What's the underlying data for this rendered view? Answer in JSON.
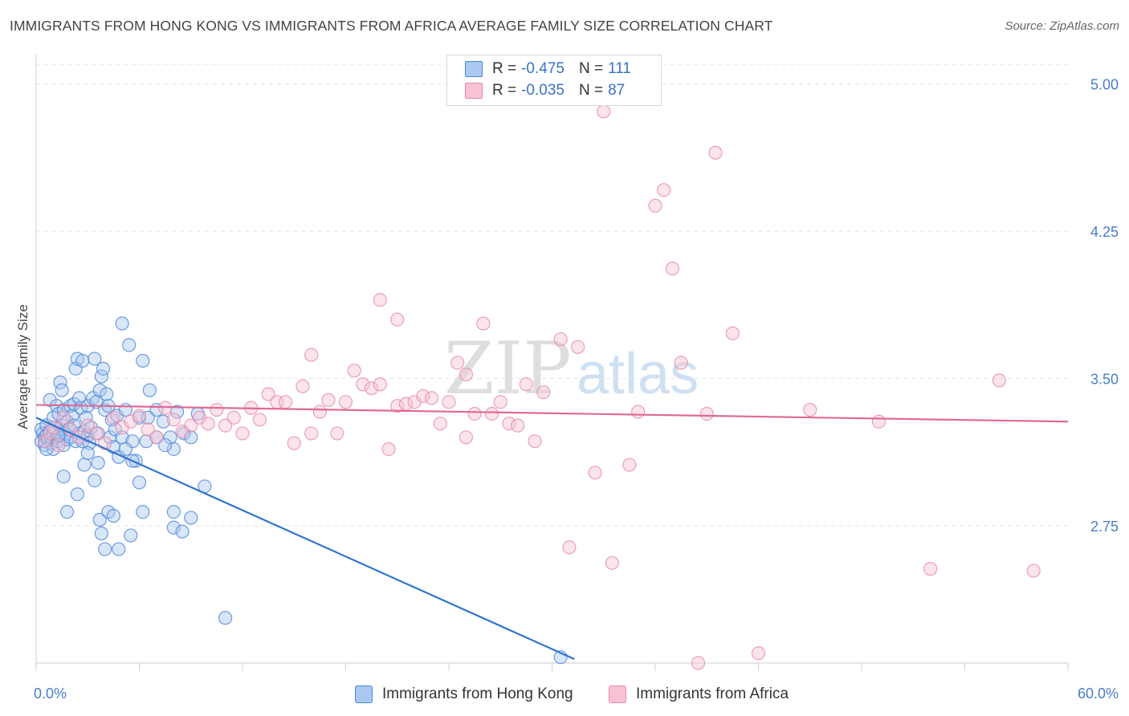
{
  "title": "IMMIGRANTS FROM HONG KONG VS IMMIGRANTS FROM AFRICA AVERAGE FAMILY SIZE CORRELATION CHART",
  "source": "Source: ZipAtlas.com",
  "watermark": {
    "zip": "ZIP",
    "atlas": "atlas"
  },
  "legend": {
    "hk": {
      "r_label": "R =",
      "r_value": "-0.475",
      "n_label": "N =",
      "n_value": "111"
    },
    "africa": {
      "r_label": "R =",
      "r_value": "-0.035",
      "n_label": "N =",
      "n_value": "87"
    }
  },
  "colors": {
    "hk_fill": "#aac8f0",
    "hk_stroke": "#4a86d8",
    "hk_line": "#2f74d0",
    "africa_fill": "#f7c3d3",
    "africa_stroke": "#e68aa8",
    "africa_line": "#e06a95",
    "grid": "#e3e3e3",
    "axis_text": "#4a7ec9"
  },
  "chart_data": {
    "type": "scatter",
    "title": "IMMIGRANTS FROM HONG KONG VS IMMIGRANTS FROM AFRICA AVERAGE FAMILY SIZE CORRELATION CHART",
    "xlabel": "",
    "ylabel": "Average Family Size",
    "xlim": [
      0,
      60
    ],
    "ylim": [
      2.05,
      5.15
    ],
    "x_tick_labels": [
      "0.0%",
      "60.0%"
    ],
    "y_ticks": [
      {
        "value": 5.0,
        "label": "5.00"
      },
      {
        "value": 4.25,
        "label": "4.25"
      },
      {
        "value": 3.5,
        "label": "3.50"
      },
      {
        "value": 2.75,
        "label": "2.75"
      }
    ],
    "series": [
      {
        "name": "Immigrants from Hong Kong",
        "trend": {
          "x": [
            0,
            31.3
          ],
          "y": [
            3.3,
            2.07
          ]
        },
        "points": [
          [
            0.3,
            3.24
          ],
          [
            0.3,
            3.18
          ],
          [
            0.4,
            3.22
          ],
          [
            0.5,
            3.2
          ],
          [
            0.5,
            3.16
          ],
          [
            0.6,
            3.26
          ],
          [
            0.6,
            3.21
          ],
          [
            0.7,
            3.19
          ],
          [
            0.8,
            3.23
          ],
          [
            0.8,
            3.39
          ],
          [
            0.9,
            3.17
          ],
          [
            1.0,
            3.22
          ],
          [
            1.0,
            3.3
          ],
          [
            1.0,
            3.14
          ],
          [
            1.1,
            3.25
          ],
          [
            1.2,
            3.2
          ],
          [
            1.2,
            3.36
          ],
          [
            1.3,
            3.32
          ],
          [
            1.3,
            3.18
          ],
          [
            1.4,
            3.48
          ],
          [
            1.4,
            3.21
          ],
          [
            1.5,
            3.26
          ],
          [
            1.5,
            3.44
          ],
          [
            1.6,
            3.34
          ],
          [
            1.6,
            3.16
          ],
          [
            1.7,
            3.22
          ],
          [
            1.8,
            3.19
          ],
          [
            1.8,
            3.28
          ],
          [
            1.9,
            3.24
          ],
          [
            2.0,
            3.36
          ],
          [
            2.0,
            3.2
          ],
          [
            2.1,
            3.31
          ],
          [
            2.2,
            3.26
          ],
          [
            2.2,
            3.37
          ],
          [
            2.3,
            3.55
          ],
          [
            2.3,
            3.18
          ],
          [
            2.4,
            3.6
          ],
          [
            2.5,
            3.22
          ],
          [
            2.5,
            3.4
          ],
          [
            2.6,
            3.35
          ],
          [
            2.7,
            3.59
          ],
          [
            2.7,
            3.18
          ],
          [
            2.8,
            3.23
          ],
          [
            2.9,
            3.3
          ],
          [
            3.0,
            3.36
          ],
          [
            3.0,
            3.21
          ],
          [
            3.1,
            3.17
          ],
          [
            3.2,
            3.25
          ],
          [
            3.3,
            3.4
          ],
          [
            3.4,
            3.6
          ],
          [
            3.5,
            3.38
          ],
          [
            3.6,
            3.22
          ],
          [
            3.7,
            3.44
          ],
          [
            3.8,
            3.51
          ],
          [
            3.9,
            3.55
          ],
          [
            4.0,
            3.34
          ],
          [
            4.1,
            3.42
          ],
          [
            4.2,
            3.36
          ],
          [
            4.3,
            3.2
          ],
          [
            4.4,
            3.29
          ],
          [
            4.5,
            3.15
          ],
          [
            4.6,
            3.24
          ],
          [
            4.7,
            3.31
          ],
          [
            4.8,
            3.1
          ],
          [
            5.0,
            3.78
          ],
          [
            5.0,
            3.2
          ],
          [
            5.2,
            3.34
          ],
          [
            5.4,
            3.67
          ],
          [
            5.6,
            3.18
          ],
          [
            5.8,
            3.08
          ],
          [
            6.0,
            3.3
          ],
          [
            6.2,
            3.59
          ],
          [
            6.4,
            3.18
          ],
          [
            6.6,
            3.44
          ],
          [
            7.0,
            3.34
          ],
          [
            7.4,
            3.28
          ],
          [
            7.8,
            3.2
          ],
          [
            8.0,
            3.14
          ],
          [
            8.2,
            3.33
          ],
          [
            8.6,
            3.22
          ],
          [
            9.0,
            3.2
          ],
          [
            9.4,
            3.32
          ],
          [
            0.6,
            3.14
          ],
          [
            1.3,
            3.21
          ],
          [
            1.6,
            3.0
          ],
          [
            1.8,
            2.82
          ],
          [
            2.4,
            2.91
          ],
          [
            2.8,
            3.06
          ],
          [
            3.0,
            3.12
          ],
          [
            3.4,
            2.98
          ],
          [
            3.6,
            3.07
          ],
          [
            3.7,
            2.78
          ],
          [
            3.8,
            2.71
          ],
          [
            4.0,
            2.63
          ],
          [
            4.2,
            2.82
          ],
          [
            4.5,
            2.8
          ],
          [
            4.8,
            2.63
          ],
          [
            5.2,
            3.14
          ],
          [
            5.5,
            2.7
          ],
          [
            5.6,
            3.08
          ],
          [
            6.0,
            2.97
          ],
          [
            6.2,
            2.82
          ],
          [
            6.5,
            3.3
          ],
          [
            7.0,
            3.2
          ],
          [
            7.5,
            3.16
          ],
          [
            8.0,
            2.74
          ],
          [
            8.0,
            2.82
          ],
          [
            8.5,
            2.72
          ],
          [
            9.0,
            2.79
          ],
          [
            9.8,
            2.95
          ],
          [
            11.0,
            2.28
          ],
          [
            30.5,
            2.08
          ]
        ]
      },
      {
        "name": "Immigrants from Africa",
        "trend": {
          "x": [
            0,
            60
          ],
          "y": [
            3.365,
            3.28
          ]
        },
        "points": [
          [
            0.5,
            3.18
          ],
          [
            0.8,
            3.22
          ],
          [
            1.0,
            3.25
          ],
          [
            1.3,
            3.16
          ],
          [
            1.6,
            3.3
          ],
          [
            2.0,
            3.24
          ],
          [
            2.5,
            3.2
          ],
          [
            3.0,
            3.26
          ],
          [
            3.5,
            3.22
          ],
          [
            4.0,
            3.17
          ],
          [
            4.5,
            3.3
          ],
          [
            5.0,
            3.25
          ],
          [
            5.5,
            3.28
          ],
          [
            6.0,
            3.31
          ],
          [
            6.5,
            3.24
          ],
          [
            7.0,
            3.2
          ],
          [
            7.5,
            3.35
          ],
          [
            8.0,
            3.29
          ],
          [
            8.5,
            3.23
          ],
          [
            9.0,
            3.26
          ],
          [
            9.5,
            3.3
          ],
          [
            10.0,
            3.27
          ],
          [
            10.5,
            3.34
          ],
          [
            11.0,
            3.26
          ],
          [
            11.5,
            3.3
          ],
          [
            12.0,
            3.22
          ],
          [
            12.5,
            3.35
          ],
          [
            13.0,
            3.29
          ],
          [
            13.5,
            3.42
          ],
          [
            14.0,
            3.38
          ],
          [
            14.5,
            3.38
          ],
          [
            15.0,
            3.17
          ],
          [
            15.5,
            3.46
          ],
          [
            16.0,
            3.22
          ],
          [
            16.5,
            3.33
          ],
          [
            17.0,
            3.39
          ],
          [
            17.5,
            3.22
          ],
          [
            18.0,
            3.38
          ],
          [
            18.5,
            3.54
          ],
          [
            19.0,
            3.47
          ],
          [
            19.5,
            3.45
          ],
          [
            20.0,
            3.47
          ],
          [
            20.5,
            3.14
          ],
          [
            21.0,
            3.36
          ],
          [
            21.5,
            3.37
          ],
          [
            22.0,
            3.38
          ],
          [
            22.5,
            3.41
          ],
          [
            23.0,
            3.4
          ],
          [
            23.5,
            3.27
          ],
          [
            24.0,
            3.38
          ],
          [
            24.5,
            3.58
          ],
          [
            25.0,
            3.52
          ],
          [
            25.5,
            3.32
          ],
          [
            26.0,
            3.78
          ],
          [
            26.5,
            3.32
          ],
          [
            27.0,
            3.38
          ],
          [
            27.5,
            3.27
          ],
          [
            28.0,
            3.26
          ],
          [
            28.5,
            3.47
          ],
          [
            29.0,
            3.18
          ],
          [
            29.5,
            3.43
          ],
          [
            30.5,
            3.7
          ],
          [
            31.5,
            3.66
          ],
          [
            32.5,
            3.02
          ],
          [
            33.5,
            2.56
          ],
          [
            34.5,
            3.06
          ],
          [
            35.0,
            3.33
          ],
          [
            36.0,
            4.38
          ],
          [
            36.5,
            4.46
          ],
          [
            37.0,
            4.06
          ],
          [
            37.5,
            3.58
          ],
          [
            38.5,
            2.05
          ],
          [
            39.5,
            4.65
          ],
          [
            40.5,
            3.73
          ],
          [
            20.0,
            3.9
          ],
          [
            21.0,
            3.8
          ],
          [
            16.0,
            3.62
          ],
          [
            25.0,
            3.2
          ],
          [
            31.0,
            2.64
          ],
          [
            39.0,
            3.32
          ],
          [
            45.0,
            3.34
          ],
          [
            49.0,
            3.28
          ],
          [
            52.0,
            2.53
          ],
          [
            56.0,
            3.49
          ],
          [
            58.0,
            2.52
          ],
          [
            42.0,
            2.1
          ],
          [
            33.0,
            4.86
          ]
        ]
      }
    ]
  },
  "bottom_legend": {
    "hk_label": "Immigrants from Hong Kong",
    "africa_label": "Immigrants from Africa"
  }
}
